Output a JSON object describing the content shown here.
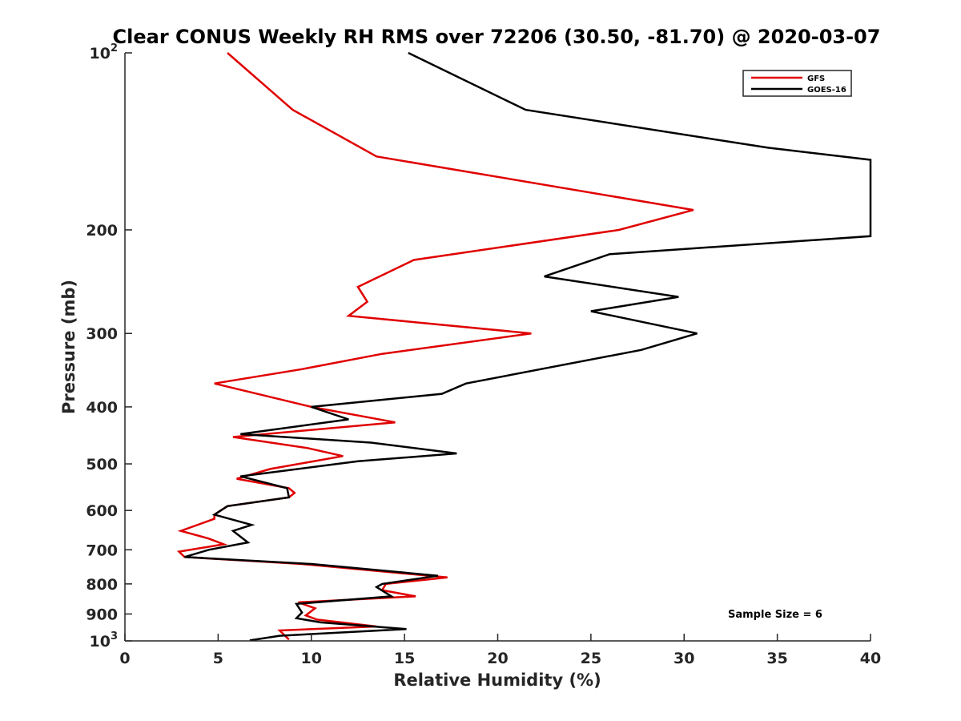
{
  "chart_data": {
    "type": "line",
    "title": "Clear CONUS Weekly RH RMS over 72206 (30.50, -81.70) @ 2020-03-07",
    "xlabel": "Relative Humidity (%)",
    "ylabel": "Pressure (mb)",
    "xlim": [
      0,
      40
    ],
    "ylim": [
      100,
      1000
    ],
    "y_scale": "log",
    "y_reversed": true,
    "grid": false,
    "legend_position": "top-right",
    "x_ticks": [
      "0",
      "5",
      "10",
      "15",
      "20",
      "25",
      "30",
      "35",
      "40"
    ],
    "y_ticks": [
      {
        "value": 100,
        "base": "10",
        "exp": "2"
      },
      {
        "value": 200,
        "label": "200"
      },
      {
        "value": 300,
        "label": "300"
      },
      {
        "value": 400,
        "label": "400"
      },
      {
        "value": 500,
        "label": "500"
      },
      {
        "value": 600,
        "label": "600"
      },
      {
        "value": 700,
        "label": "700"
      },
      {
        "value": 800,
        "label": "800"
      },
      {
        "value": 900,
        "label": "900"
      },
      {
        "value": 1000,
        "base": "10",
        "exp": "3"
      }
    ],
    "annotation": "Sample Size = 6",
    "series": [
      {
        "name": "GFS",
        "color": "#e00000",
        "points": [
          [
            5.5,
            100
          ],
          [
            9.0,
            125
          ],
          [
            13.5,
            150
          ],
          [
            30.5,
            185
          ],
          [
            26.5,
            200
          ],
          [
            15.5,
            225
          ],
          [
            12.5,
            250
          ],
          [
            13.0,
            265
          ],
          [
            12.0,
            280
          ],
          [
            21.8,
            300
          ],
          [
            13.8,
            325
          ],
          [
            9.5,
            345
          ],
          [
            4.8,
            365
          ],
          [
            10.0,
            400
          ],
          [
            14.5,
            425
          ],
          [
            5.8,
            450
          ],
          [
            9.8,
            470
          ],
          [
            11.7,
            485
          ],
          [
            7.8,
            510
          ],
          [
            6.0,
            530
          ],
          [
            8.8,
            550
          ],
          [
            9.1,
            560
          ],
          [
            8.8,
            570
          ],
          [
            5.5,
            590
          ],
          [
            4.8,
            610
          ],
          [
            4.8,
            620
          ],
          [
            3.0,
            650
          ],
          [
            4.5,
            670
          ],
          [
            5.3,
            685
          ],
          [
            2.9,
            705
          ],
          [
            3.2,
            720
          ],
          [
            9.5,
            740
          ],
          [
            17.3,
            780
          ],
          [
            14.0,
            800
          ],
          [
            13.8,
            820
          ],
          [
            15.6,
            840
          ],
          [
            9.3,
            860
          ],
          [
            10.2,
            880
          ],
          [
            9.7,
            905
          ],
          [
            10.3,
            920
          ],
          [
            13.5,
            945
          ],
          [
            8.3,
            960
          ],
          [
            8.8,
            995
          ]
        ]
      },
      {
        "name": "GOES-16",
        "color": "#000000",
        "points": [
          [
            15.2,
            100
          ],
          [
            21.5,
            125
          ],
          [
            34.5,
            145
          ],
          [
            40.0,
            152
          ],
          [
            40.0,
            205
          ],
          [
            26.0,
            220
          ],
          [
            22.5,
            240
          ],
          [
            29.7,
            260
          ],
          [
            25.0,
            275
          ],
          [
            30.7,
            300
          ],
          [
            27.7,
            320
          ],
          [
            18.3,
            365
          ],
          [
            17.0,
            380
          ],
          [
            10.0,
            400
          ],
          [
            12.0,
            420
          ],
          [
            6.2,
            445
          ],
          [
            13.2,
            460
          ],
          [
            17.8,
            480
          ],
          [
            12.5,
            495
          ],
          [
            6.2,
            525
          ],
          [
            8.7,
            550
          ],
          [
            8.8,
            570
          ],
          [
            5.5,
            590
          ],
          [
            4.8,
            610
          ],
          [
            6.8,
            635
          ],
          [
            5.8,
            650
          ],
          [
            6.6,
            680
          ],
          [
            4.5,
            700
          ],
          [
            3.2,
            720
          ],
          [
            10.0,
            740
          ],
          [
            16.8,
            775
          ],
          [
            13.8,
            800
          ],
          [
            13.5,
            810
          ],
          [
            14.3,
            840
          ],
          [
            9.2,
            865
          ],
          [
            9.5,
            895
          ],
          [
            9.2,
            915
          ],
          [
            10.5,
            930
          ],
          [
            15.1,
            955
          ],
          [
            8.3,
            980
          ],
          [
            6.7,
            998
          ]
        ]
      }
    ]
  }
}
